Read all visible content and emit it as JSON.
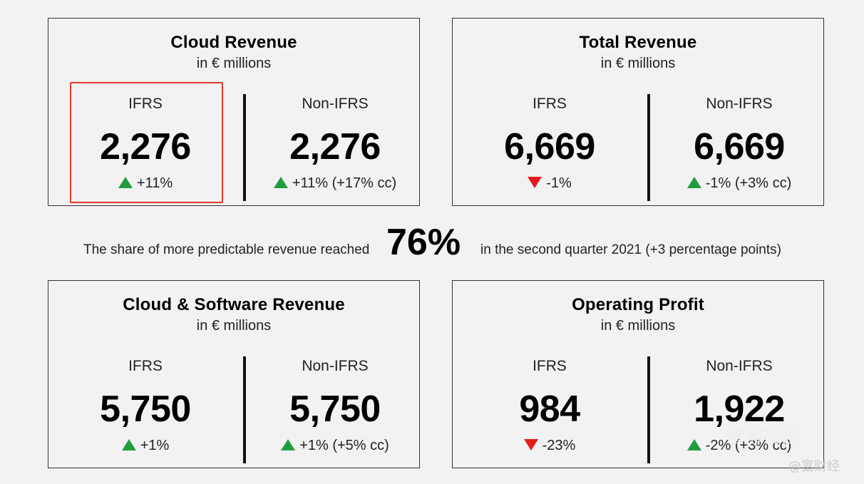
{
  "cards": [
    {
      "title": "Cloud Revenue",
      "subtitle": "in € millions",
      "left": {
        "label": "IFRS",
        "value": "2,276",
        "change": "+11%",
        "direction": "up"
      },
      "right": {
        "label": "Non-IFRS",
        "value": "2,276",
        "change": "+11% (+17% cc)",
        "direction": "up"
      }
    },
    {
      "title": "Total Revenue",
      "subtitle": "in € millions",
      "left": {
        "label": "IFRS",
        "value": "6,669",
        "change": "-1%",
        "direction": "down"
      },
      "right": {
        "label": "Non-IFRS",
        "value": "6,669",
        "change": "-1% (+3% cc)",
        "direction": "up"
      }
    },
    {
      "title": "Cloud & Software Revenue",
      "subtitle": "in € millions",
      "left": {
        "label": "IFRS",
        "value": "5,750",
        "change": "+1%",
        "direction": "up"
      },
      "right": {
        "label": "Non-IFRS",
        "value": "5,750",
        "change": "+1% (+5% cc)",
        "direction": "up"
      }
    },
    {
      "title": "Operating Profit",
      "subtitle": "in € millions",
      "left": {
        "label": "IFRS",
        "value": "984",
        "change": "-23%",
        "direction": "down"
      },
      "right": {
        "label": "Non-IFRS",
        "value": "1,922",
        "change": "-2% (+3% cc)",
        "direction": "up"
      }
    }
  ],
  "share": {
    "prefix": "The share of more predictable revenue reached",
    "value": "76%",
    "suffix": "in the second quarter 2021 (+3 percentage points)"
  },
  "watermark": {
    "primary": "雪球社区",
    "secondary": "@富财经"
  },
  "colors": {
    "up": "#1f9d3f",
    "down": "#e41b1b",
    "highlight": "#e03a2e"
  }
}
